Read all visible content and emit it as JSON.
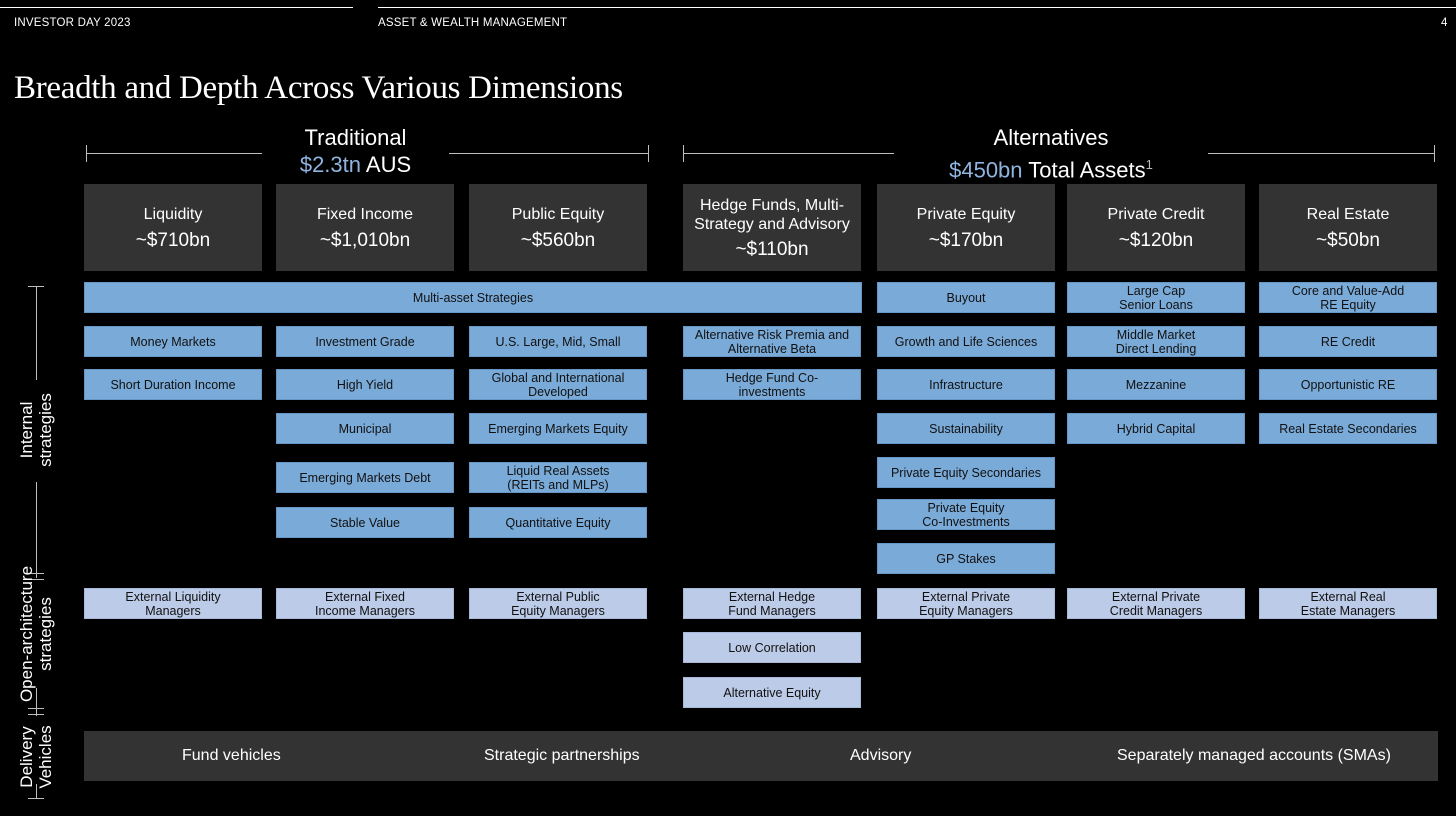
{
  "header": {
    "left": "INVESTOR DAY 2023",
    "middle": "ASSET & WEALTH MANAGEMENT",
    "page_number": "4"
  },
  "title": "Breadth and Depth Across Various Dimensions",
  "groups": {
    "traditional": {
      "name": "Traditional",
      "amount": "$2.3tn",
      "suffix": "AUS"
    },
    "alternatives": {
      "name": "Alternatives",
      "amount": "$450bn",
      "suffix": "Total Assets",
      "footnote": "1"
    }
  },
  "categories": [
    {
      "name": "Liquidity",
      "amount": "~$710bn"
    },
    {
      "name": "Fixed Income",
      "amount": "~$1,010bn"
    },
    {
      "name": "Public Equity",
      "amount": "~$560bn"
    },
    {
      "name": "Hedge Funds, Multi-Strategy and Advisory",
      "amount": "~$110bn"
    },
    {
      "name": "Private Equity",
      "amount": "~$170bn"
    },
    {
      "name": "Private Credit",
      "amount": "~$120bn"
    },
    {
      "name": "Real Estate",
      "amount": "~$50bn"
    }
  ],
  "internal": {
    "multi_asset": "Multi-asset Strategies",
    "liquidity": [
      "Money Markets",
      "Short Duration Income"
    ],
    "fixed_income": [
      "Investment Grade",
      "High Yield",
      "Municipal",
      "Emerging Markets Debt",
      "Stable Value"
    ],
    "public_equity": [
      "U.S. Large, Mid, Small",
      "Global and International Developed",
      "Emerging Markets Equity",
      "Liquid Real Assets (REITs and MLPs)",
      "Quantitative Equity"
    ],
    "hedge_funds": [
      "Alternative Risk Premia and Alternative Beta",
      "Hedge Fund Co-investments"
    ],
    "private_equity": [
      "Buyout",
      "Growth and Life Sciences",
      "Infrastructure",
      "Sustainability",
      "Private Equity Secondaries",
      "Private Equity Co-Investments",
      "GP Stakes"
    ],
    "private_credit": [
      "Large Cap Senior Loans",
      "Middle Market Direct Lending",
      "Mezzanine",
      "Hybrid Capital"
    ],
    "real_estate": [
      "Core and Value-Add RE Equity",
      "RE Credit",
      "Opportunistic RE",
      "Real Estate Secondaries"
    ]
  },
  "open_architecture": {
    "liquidity": "External Liquidity Managers",
    "fixed_income": "External Fixed Income Managers",
    "public_equity": "External Public Equity Managers",
    "hedge_funds": [
      "External Hedge Fund Managers",
      "Low Correlation",
      "Alternative Equity"
    ],
    "private_equity": "External Private Equity Managers",
    "private_credit": "External Private Credit Managers",
    "real_estate": "External Real Estate Managers"
  },
  "delivery": [
    "Fund vehicles",
    "Strategic partnerships",
    "Advisory",
    "Separately managed accounts (SMAs)"
  ],
  "side_labels": {
    "internal": "Internal strategies",
    "open": "Open-architecture strategies",
    "delivery": "Delivery Vehicles"
  },
  "colors": {
    "accent": "#8fb4e0",
    "internal_box": "#7aaad8",
    "external_box": "#bccbe8",
    "category": "#333333"
  }
}
